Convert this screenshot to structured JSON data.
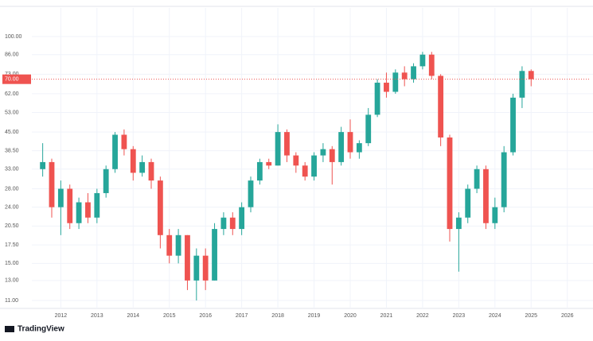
{
  "chart_data": {
    "type": "candlestick",
    "log_scale": true,
    "grid": true,
    "up_color": "#26a69a",
    "down_color": "#ef5350",
    "x": [
      2011.5,
      2011.75,
      2012.0,
      2012.25,
      2012.5,
      2012.75,
      2013.0,
      2013.25,
      2013.5,
      2013.75,
      2014.0,
      2014.25,
      2014.5,
      2014.75,
      2015.0,
      2015.25,
      2015.5,
      2015.75,
      2016.0,
      2016.25,
      2016.5,
      2016.75,
      2017.0,
      2017.25,
      2017.5,
      2017.75,
      2018.0,
      2018.25,
      2018.5,
      2018.75,
      2019.0,
      2019.25,
      2019.5,
      2019.75,
      2020.0,
      2020.25,
      2020.5,
      2020.75,
      2021.0,
      2021.25,
      2021.5,
      2021.75,
      2022.0,
      2022.25,
      2022.5,
      2022.75,
      2023.0,
      2023.25,
      2023.5,
      2023.75,
      2024.0,
      2024.25,
      2024.5,
      2024.75,
      2025.0
    ],
    "open": [
      33,
      35,
      24,
      28,
      21,
      25,
      22,
      27,
      33,
      44,
      39,
      32,
      35,
      30,
      19,
      16,
      19,
      13,
      16,
      13,
      20,
      22,
      20,
      24,
      30,
      35,
      34,
      45,
      37,
      34,
      31,
      37,
      39,
      35,
      45,
      38,
      41,
      52,
      68,
      63,
      74,
      70,
      78,
      86,
      72,
      43,
      20,
      22,
      28,
      33,
      21,
      24,
      38,
      60,
      75
    ],
    "high": [
      41,
      36,
      30,
      29,
      26,
      27,
      28,
      34,
      45,
      46,
      40,
      37,
      36,
      31,
      20,
      20,
      19,
      17,
      17,
      21,
      23,
      23,
      25,
      31,
      36,
      36,
      48,
      46,
      38,
      35,
      38,
      41,
      40,
      47,
      50,
      42,
      55,
      70,
      74,
      76,
      78,
      80,
      88,
      88,
      73,
      44,
      23,
      29,
      34,
      34,
      26,
      40,
      62,
      78,
      76
    ],
    "low": [
      31,
      22,
      19,
      20,
      20,
      21,
      21,
      26,
      32,
      37,
      30,
      31,
      28,
      17,
      15,
      15,
      12,
      11,
      12,
      13,
      19,
      19,
      19,
      23,
      29,
      33,
      34,
      35,
      32,
      30,
      30,
      35,
      29,
      34,
      36,
      36,
      40,
      51,
      60,
      62,
      66,
      68,
      76,
      70,
      40,
      18,
      14,
      21,
      27,
      20,
      20,
      23,
      37,
      55,
      66
    ],
    "close": [
      35,
      24,
      28,
      21,
      25,
      22,
      27,
      33,
      44,
      39,
      32,
      35,
      30,
      19,
      16,
      19,
      13,
      16,
      13,
      20,
      22,
      20,
      24,
      30,
      35,
      34,
      45,
      37,
      34,
      31,
      37,
      39,
      35,
      45,
      38,
      41,
      52,
      68,
      63,
      74,
      70,
      78,
      86,
      72,
      43,
      20,
      22,
      28,
      33,
      21,
      24,
      38,
      60,
      75,
      70
    ],
    "last_label": "70.00",
    "xlim": [
      2011.2,
      2026.6
    ],
    "xticks": [
      2012,
      2013,
      2014,
      2015,
      2016,
      2017,
      2018,
      2019,
      2020,
      2021,
      2022,
      2023,
      2024,
      2025,
      2026
    ],
    "ylim": [
      10.5,
      115
    ],
    "yticks": [
      {
        "value": 11,
        "label": "11.00"
      },
      {
        "value": 13,
        "label": "13.00"
      },
      {
        "value": 15,
        "label": "15.00"
      },
      {
        "value": 17.5,
        "label": "17.50"
      },
      {
        "value": 20.5,
        "label": "20.50"
      },
      {
        "value": 24,
        "label": "24.00"
      },
      {
        "value": 28,
        "label": "28.00"
      },
      {
        "value": 33,
        "label": "33.00"
      },
      {
        "value": 38.5,
        "label": "38.50"
      },
      {
        "value": 45,
        "label": "45.00"
      },
      {
        "value": 53,
        "label": "53.00"
      },
      {
        "value": 62,
        "label": "62.00"
      },
      {
        "value": 73,
        "label": "73.00"
      },
      {
        "value": 86,
        "label": "86.00"
      },
      {
        "value": 100,
        "label": "100.00"
      }
    ],
    "brand": "TradingView"
  }
}
